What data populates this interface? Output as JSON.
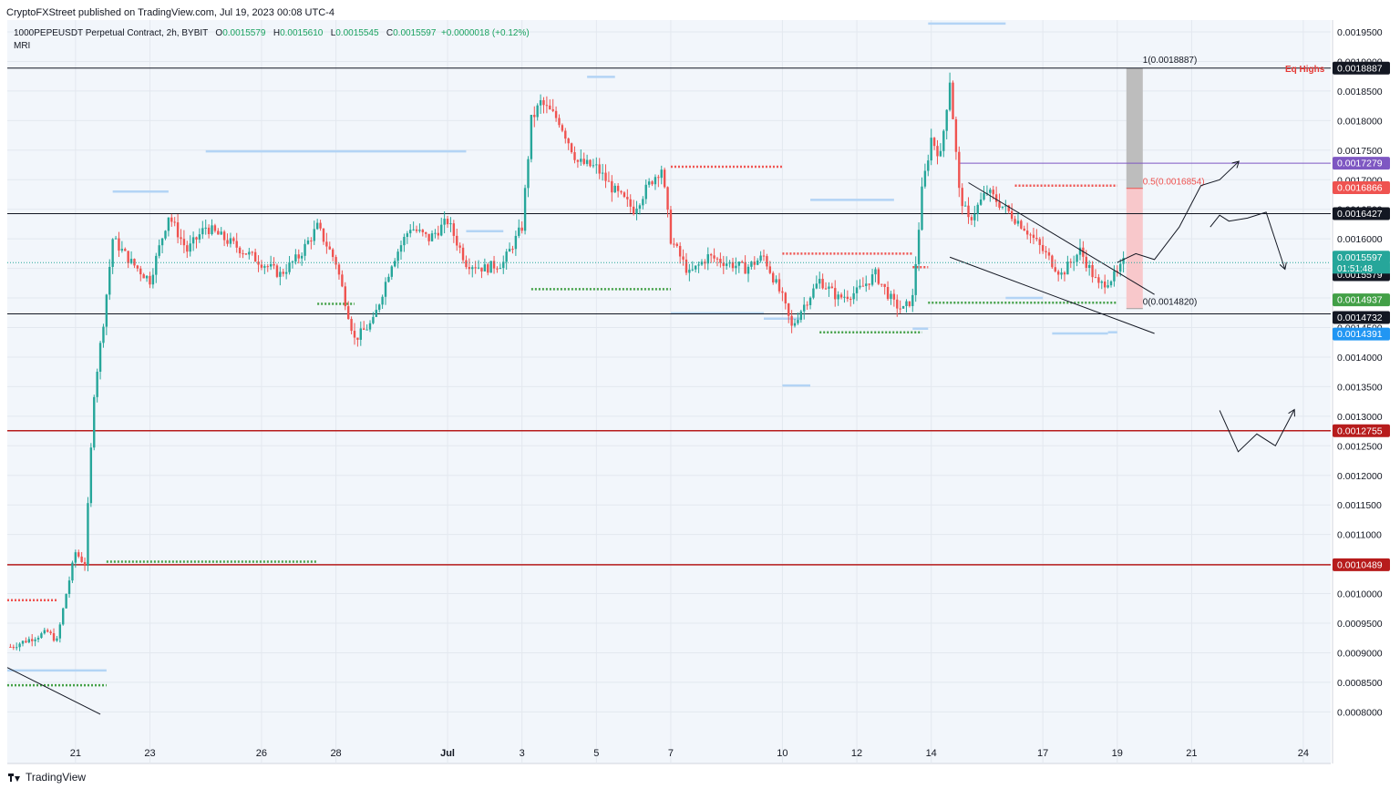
{
  "header": {
    "publisher_line": "CryptoFXStreet published on TradingView.com, Jul 19, 2023 00:08 UTC-4"
  },
  "footer": {
    "logo_text": "TradingView",
    "logo_icon": "tradingview-logo-icon"
  },
  "colors": {
    "up": "#26a69a",
    "down": "#ef5350",
    "plot_bg": "#f2f6fb",
    "grid": "#e3e8ef",
    "support_red": "#b71c1c",
    "black_level": "#131722",
    "purple": "#7e57c2",
    "green_dots": "#43a047",
    "red_dots": "#ef5350",
    "light_blue": "#b3d4f5",
    "risk_gray": "#bdbdbd",
    "risk_pink": "#f8c8cb"
  },
  "chart_data": {
    "type": "candlestick",
    "symbol": "1000PEPEUSDT Perpetual Contract, 2h, BYBIT",
    "indicator": "MRI",
    "ohlc": {
      "o_label": "O",
      "o": "0.0015579",
      "h_label": "H",
      "h": "0.0015610",
      "l_label": "L",
      "l": "0.0015545",
      "c_label": "C",
      "c": "0.0015597",
      "change": "+0.0000018 (+0.12%)"
    },
    "ylim": [
      0.00076,
      0.00198
    ],
    "y_ticks": [
      "0.0019500",
      "0.0019000",
      "0.0018500",
      "0.0018000",
      "0.0017500",
      "0.0017000",
      "0.0016500",
      "0.0016000",
      "0.0015500",
      "0.0015000",
      "0.0014500",
      "0.0014000",
      "0.0013500",
      "0.0013000",
      "0.0012500",
      "0.0012000",
      "0.0011500",
      "0.0011000",
      "0.0010500",
      "0.0010000",
      "0.0009500",
      "0.0009000",
      "0.0008500",
      "0.0008000"
    ],
    "x_range_days": [
      "2023-06-19T04:00",
      "2023-06-25T00:00"
    ],
    "x_ticks": [
      {
        "date": "2023-06-21",
        "label": "21"
      },
      {
        "date": "2023-06-23",
        "label": "23"
      },
      {
        "date": "2023-06-26",
        "label": "26"
      },
      {
        "date": "2023-06-28",
        "label": "28"
      },
      {
        "date": "2023-07-01",
        "label": "Jul"
      },
      {
        "date": "2023-07-03",
        "label": "3"
      },
      {
        "date": "2023-07-05",
        "label": "5"
      },
      {
        "date": "2023-07-07",
        "label": "7"
      },
      {
        "date": "2023-07-10",
        "label": "10"
      },
      {
        "date": "2023-07-12",
        "label": "12"
      },
      {
        "date": "2023-07-14",
        "label": "14"
      },
      {
        "date": "2023-07-17",
        "label": "17"
      },
      {
        "date": "2023-07-19",
        "label": "19"
      },
      {
        "date": "2023-07-21",
        "label": "21"
      },
      {
        "date": "2023-07-24",
        "label": "24"
      }
    ],
    "price_path": [
      {
        "d": "2023-06-19T06:00",
        "p": 0.00091
      },
      {
        "d": "2023-06-20T06:00",
        "p": 0.000935
      },
      {
        "d": "2023-06-20T12:00",
        "p": 0.00092
      },
      {
        "d": "2023-06-20T18:00",
        "p": 0.001
      },
      {
        "d": "2023-06-21T00:00",
        "p": 0.00107
      },
      {
        "d": "2023-06-21T06:00",
        "p": 0.00105
      },
      {
        "d": "2023-06-21T12:00",
        "p": 0.00134
      },
      {
        "d": "2023-06-21T18:00",
        "p": 0.00146
      },
      {
        "d": "2023-06-22T00:00",
        "p": 0.0016
      },
      {
        "d": "2023-06-22T12:00",
        "p": 0.00156
      },
      {
        "d": "2023-06-23T00:00",
        "p": 0.00153
      },
      {
        "d": "2023-06-23T12:00",
        "p": 0.00164
      },
      {
        "d": "2023-06-24T00:00",
        "p": 0.00158
      },
      {
        "d": "2023-06-24T12:00",
        "p": 0.00162
      },
      {
        "d": "2023-06-25T00:00",
        "p": 0.0016
      },
      {
        "d": "2023-06-25T12:00",
        "p": 0.00158
      },
      {
        "d": "2023-06-26T00:00",
        "p": 0.00156
      },
      {
        "d": "2023-06-26T12:00",
        "p": 0.00154
      },
      {
        "d": "2023-06-27T00:00",
        "p": 0.00157
      },
      {
        "d": "2023-06-27T12:00",
        "p": 0.00162
      },
      {
        "d": "2023-06-28T00:00",
        "p": 0.00156
      },
      {
        "d": "2023-06-28T12:00",
        "p": 0.00143
      },
      {
        "d": "2023-06-29T00:00",
        "p": 0.00146
      },
      {
        "d": "2023-06-29T12:00",
        "p": 0.00156
      },
      {
        "d": "2023-06-30T00:00",
        "p": 0.00162
      },
      {
        "d": "2023-06-30T12:00",
        "p": 0.0016
      },
      {
        "d": "2023-07-01T00:00",
        "p": 0.00163
      },
      {
        "d": "2023-07-01T12:00",
        "p": 0.00156
      },
      {
        "d": "2023-07-02T00:00",
        "p": 0.00155
      },
      {
        "d": "2023-07-02T12:00",
        "p": 0.00156
      },
      {
        "d": "2023-07-03T00:00",
        "p": 0.00162
      },
      {
        "d": "2023-07-03T06:00",
        "p": 0.0018
      },
      {
        "d": "2023-07-03T12:00",
        "p": 0.00183
      },
      {
        "d": "2023-07-04T00:00",
        "p": 0.0018
      },
      {
        "d": "2023-07-04T12:00",
        "p": 0.00173
      },
      {
        "d": "2023-07-05T00:00",
        "p": 0.00172
      },
      {
        "d": "2023-07-05T12:00",
        "p": 0.00168
      },
      {
        "d": "2023-07-06T00:00",
        "p": 0.00165
      },
      {
        "d": "2023-07-06T12:00",
        "p": 0.0017
      },
      {
        "d": "2023-07-06T18:00",
        "p": 0.00172
      },
      {
        "d": "2023-07-07T00:00",
        "p": 0.0016
      },
      {
        "d": "2023-07-07T12:00",
        "p": 0.00154
      },
      {
        "d": "2023-07-08T00:00",
        "p": 0.00157
      },
      {
        "d": "2023-07-08T12:00",
        "p": 0.00156
      },
      {
        "d": "2023-07-09T00:00",
        "p": 0.00155
      },
      {
        "d": "2023-07-09T12:00",
        "p": 0.00157
      },
      {
        "d": "2023-07-10T00:00",
        "p": 0.0015
      },
      {
        "d": "2023-07-10T06:00",
        "p": 0.00145
      },
      {
        "d": "2023-07-10T12:00",
        "p": 0.00148
      },
      {
        "d": "2023-07-11T00:00",
        "p": 0.00153
      },
      {
        "d": "2023-07-11T12:00",
        "p": 0.0015
      },
      {
        "d": "2023-07-12T00:00",
        "p": 0.00151
      },
      {
        "d": "2023-07-12T12:00",
        "p": 0.00154
      },
      {
        "d": "2023-07-13T00:00",
        "p": 0.00149
      },
      {
        "d": "2023-07-13T06:00",
        "p": 0.00148
      },
      {
        "d": "2023-07-13T12:00",
        "p": 0.0015
      },
      {
        "d": "2023-07-13T18:00",
        "p": 0.00168
      },
      {
        "d": "2023-07-14T00:00",
        "p": 0.00177
      },
      {
        "d": "2023-07-14T06:00",
        "p": 0.00174
      },
      {
        "d": "2023-07-14T12:00",
        "p": 0.00187
      },
      {
        "d": "2023-07-14T18:00",
        "p": 0.00168
      },
      {
        "d": "2023-07-15T00:00",
        "p": 0.00163
      },
      {
        "d": "2023-07-15T12:00",
        "p": 0.00168
      },
      {
        "d": "2023-07-16T00:00",
        "p": 0.00165
      },
      {
        "d": "2023-07-16T12:00",
        "p": 0.00162
      },
      {
        "d": "2023-07-17T00:00",
        "p": 0.00158
      },
      {
        "d": "2023-07-17T12:00",
        "p": 0.00154
      },
      {
        "d": "2023-07-18T00:00",
        "p": 0.00158
      },
      {
        "d": "2023-07-18T12:00",
        "p": 0.00152
      },
      {
        "d": "2023-07-19T00:00",
        "p": 0.00154
      },
      {
        "d": "2023-07-19T04:00",
        "p": 0.0015597
      }
    ],
    "horizontal_levels": [
      {
        "price": 0.0018887,
        "color": "black",
        "label": "0.0018887",
        "tag_text": "Eq Highs"
      },
      {
        "price": 0.0016427,
        "color": "black",
        "label": "0.0016427"
      },
      {
        "price": 0.0014732,
        "color": "black",
        "label": "0.0014732"
      },
      {
        "price": 0.0012755,
        "color": "dark-red",
        "label": "0.0012755"
      },
      {
        "price": 0.0010489,
        "color": "dark-red",
        "label": "0.0010489"
      }
    ],
    "ray_levels": [
      {
        "price": 0.0017279,
        "start": "2023-07-14T18:00",
        "color": "purple",
        "label": "0.0017279"
      }
    ],
    "fib": {
      "start": "2023-07-19T00:00",
      "end": "2023-07-19T12:00",
      "levels": [
        {
          "ratio": "1",
          "price": "0.0018887"
        },
        {
          "ratio": "0.5",
          "price": "0.0016854"
        },
        {
          "ratio": "0",
          "price": "0.0014820"
        }
      ]
    },
    "price_labels": [
      {
        "price": 0.0016866,
        "bg": "#ef5350",
        "text": "0.0016866"
      },
      {
        "price": 0.0015597,
        "bg": "#26a69a",
        "text": "0.0015597"
      },
      {
        "price": 0.0015579,
        "bg": "#131722",
        "text": "0.0015579"
      },
      {
        "price": 0.0014937,
        "bg": "#43a047",
        "text": "0.0014937"
      },
      {
        "price": 0.0014391,
        "bg": "#2196f3",
        "text": "0.0014391"
      }
    ],
    "countdown": "01:51:48",
    "wedge": {
      "upper": [
        {
          "d": "2023-07-15T00:00",
          "p": 0.001695
        },
        {
          "d": "2023-07-20T00:00",
          "p": 0.001506
        }
      ],
      "lower": [
        {
          "d": "2023-07-14T12:00",
          "p": 0.001569
        },
        {
          "d": "2023-07-20T00:00",
          "p": 0.00144
        }
      ]
    },
    "early_trendline": [
      {
        "d": "2023-06-19T04:00",
        "p": 0.000875
      },
      {
        "d": "2023-06-21T16:00",
        "p": 0.000796
      }
    ],
    "dotted_lines": [
      {
        "color": "red",
        "price": 0.000989,
        "start": "2023-06-19T04:00",
        "end": "2023-06-20T12:00"
      },
      {
        "color": "green",
        "price": 0.000845,
        "start": "2023-06-19T04:00",
        "end": "2023-06-21T20:00"
      },
      {
        "color": "green",
        "price": 0.001054,
        "start": "2023-06-21T20:00",
        "end": "2023-06-27T12:00"
      },
      {
        "color": "green",
        "price": 0.00149,
        "start": "2023-06-27T12:00",
        "end": "2023-06-28T12:00"
      },
      {
        "color": "green",
        "price": 0.001515,
        "start": "2023-07-03T06:00",
        "end": "2023-07-07T00:00"
      },
      {
        "color": "red",
        "price": 0.001722,
        "start": "2023-07-07T00:00",
        "end": "2023-07-10T00:00"
      },
      {
        "color": "red",
        "price": 0.001575,
        "start": "2023-07-10T00:00",
        "end": "2023-07-13T12:00"
      },
      {
        "color": "green",
        "price": 0.001442,
        "start": "2023-07-11T00:00",
        "end": "2023-07-13T18:00"
      },
      {
        "color": "red",
        "price": 0.001552,
        "start": "2023-07-13T12:00",
        "end": "2023-07-13T22:00"
      },
      {
        "color": "red",
        "price": 0.00169,
        "start": "2023-07-16T06:00",
        "end": "2023-07-19T00:00"
      },
      {
        "color": "green",
        "price": 0.001492,
        "start": "2023-07-13T22:00",
        "end": "2023-07-19T00:00"
      }
    ],
    "light_blue_segments": [
      {
        "price": 0.00087,
        "start": "2023-06-19T04:00",
        "end": "2023-06-21T20:00"
      },
      {
        "price": 0.00168,
        "start": "2023-06-22T00:00",
        "end": "2023-06-23T12:00"
      },
      {
        "price": 0.001748,
        "start": "2023-06-24T12:00",
        "end": "2023-07-01T12:00"
      },
      {
        "price": 0.001613,
        "start": "2023-07-01T12:00",
        "end": "2023-07-02T12:00"
      },
      {
        "price": 0.001874,
        "start": "2023-07-04T18:00",
        "end": "2023-07-05T12:00"
      },
      {
        "price": 0.001474,
        "start": "2023-07-07T00:00",
        "end": "2023-07-09T12:00"
      },
      {
        "price": 0.001465,
        "start": "2023-07-09T12:00",
        "end": "2023-07-10T12:00"
      },
      {
        "price": 0.001352,
        "start": "2023-07-10T00:00",
        "end": "2023-07-10T18:00"
      },
      {
        "price": 0.001666,
        "start": "2023-07-10T18:00",
        "end": "2023-07-13T00:00"
      },
      {
        "price": 0.001448,
        "start": "2023-07-13T12:00",
        "end": "2023-07-13T22:00"
      },
      {
        "price": 0.001964,
        "start": "2023-07-13T22:00",
        "end": "2023-07-16T00:00"
      },
      {
        "price": 0.0015,
        "start": "2023-07-16T00:00",
        "end": "2023-07-17T00:00"
      },
      {
        "price": 0.00144,
        "start": "2023-07-17T06:00",
        "end": "2023-07-18T18:00"
      },
      {
        "price": 0.001442,
        "start": "2023-07-18T18:00",
        "end": "2023-07-19T00:00"
      }
    ],
    "scenario_paths": [
      [
        {
          "d": "2023-07-19T00:00",
          "p": 0.00156
        },
        {
          "d": "2023-07-19T12:00",
          "p": 0.001575
        },
        {
          "d": "2023-07-20T00:00",
          "p": 0.001565
        },
        {
          "d": "2023-07-20T16:00",
          "p": 0.00162
        },
        {
          "d": "2023-07-21T06:00",
          "p": 0.00169
        },
        {
          "d": "2023-07-21T18:00",
          "p": 0.0017
        },
        {
          "d": "2023-07-22T06:00",
          "p": 0.00173
        }
      ],
      [
        {
          "d": "2023-07-21T12:00",
          "p": 0.00162
        },
        {
          "d": "2023-07-21T18:00",
          "p": 0.00164
        },
        {
          "d": "2023-07-22T00:00",
          "p": 0.00163
        },
        {
          "d": "2023-07-22T12:00",
          "p": 0.001635
        },
        {
          "d": "2023-07-23T00:00",
          "p": 0.001645
        },
        {
          "d": "2023-07-23T12:00",
          "p": 0.00155
        }
      ],
      [
        {
          "d": "2023-07-21T18:00",
          "p": 0.00131
        },
        {
          "d": "2023-07-22T06:00",
          "p": 0.00124
        },
        {
          "d": "2023-07-22T18:00",
          "p": 0.00127
        },
        {
          "d": "2023-07-23T06:00",
          "p": 0.00125
        },
        {
          "d": "2023-07-23T18:00",
          "p": 0.00131
        }
      ]
    ],
    "grid": "on",
    "legend": "top-left"
  }
}
